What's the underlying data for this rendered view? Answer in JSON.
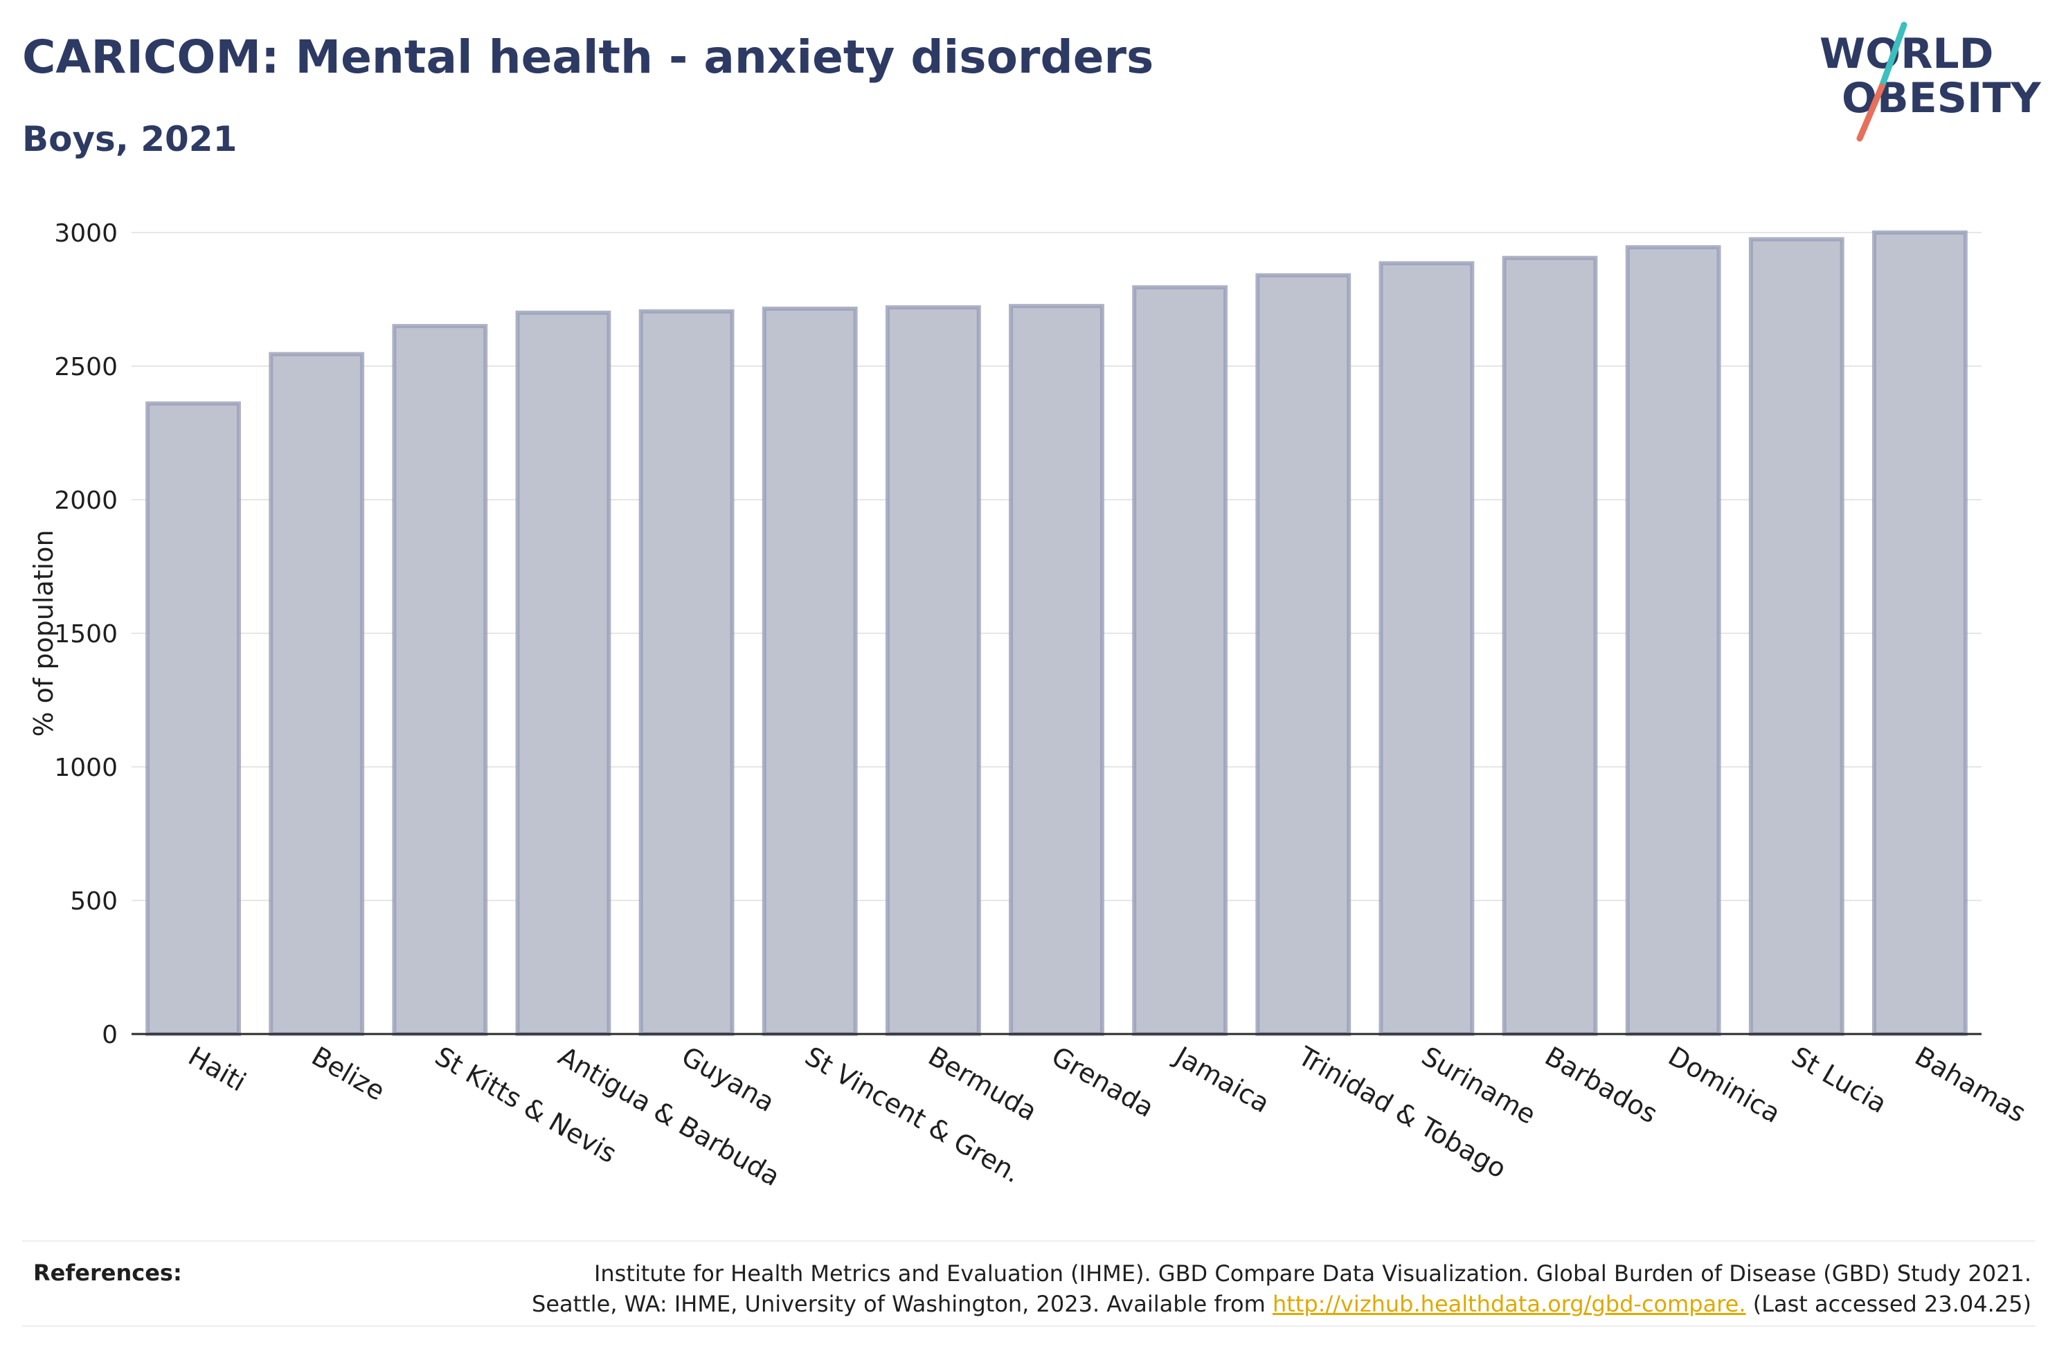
{
  "header": {
    "title": "CARICOM: Mental health - anxiety disorders",
    "subtitle": "Boys, 2021"
  },
  "logo": {
    "line1": "WORLD",
    "line2": "OBESITY",
    "text_color": "#2d3a63",
    "slash_top_color": "#3bbfbf",
    "slash_bottom_color": "#e8705a"
  },
  "chart_data": {
    "type": "bar",
    "ylabel": "% of population",
    "xlabel": "",
    "ylim": [
      0,
      3000
    ],
    "yticks": [
      0,
      500,
      1000,
      1500,
      2000,
      2500,
      3000
    ],
    "grid": true,
    "bar_fill": "#bfc3d0",
    "bar_stroke": "#9a9fb8",
    "categories": [
      "Haiti",
      "Belize",
      "St Kitts & Nevis",
      "Antigua & Barbuda",
      "Guyana",
      "St Vincent & Gren.",
      "Bermuda",
      "Grenada",
      "Jamaica",
      "Trinidad & Tobago",
      "Suriname",
      "Barbados",
      "Dominica",
      "St Lucia",
      "Bahamas"
    ],
    "values": [
      2360,
      2545,
      2650,
      2700,
      2705,
      2715,
      2720,
      2725,
      2795,
      2840,
      2885,
      2905,
      2945,
      2975,
      3000
    ]
  },
  "references": {
    "label": "References:",
    "line1": "Institute for Health Metrics and Evaluation (IHME). GBD Compare Data Visualization. Global Burden of Disease (GBD) Study 2021.",
    "line2_prefix": "Seattle, WA: IHME, University of Washington, 2023. Available from ",
    "link": "http://vizhub.healthdata.org/gbd-compare.",
    "line2_suffix": " (Last accessed 23.04.25)"
  }
}
